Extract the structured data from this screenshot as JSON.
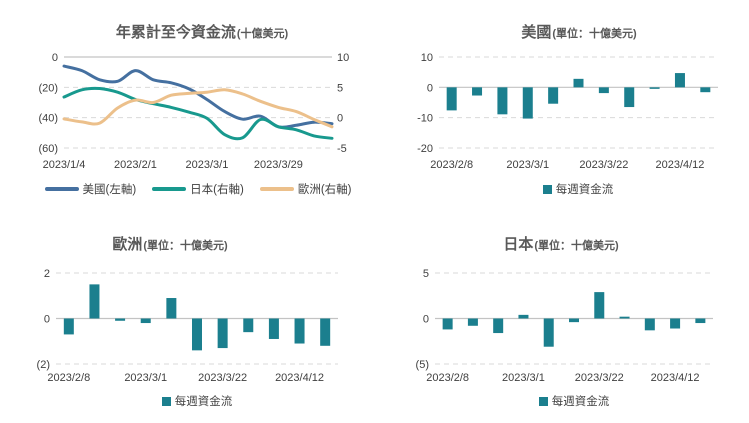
{
  "colors": {
    "us_line": "#4570a0",
    "japan_line": "#18998e",
    "europe_line": "#ecc08b",
    "bar_fill": "#1b7f8e",
    "negative_tick": "#ff0000",
    "tick_text": "#404040",
    "title_text": "#595959",
    "gridline": "#d9d9d9",
    "zero_line": "#c3c3c3",
    "background": "#ffffff"
  },
  "chart_data": [
    {
      "type": "line",
      "title": "年累計至今資金流",
      "title_suffix": "(十億美元)",
      "n_points": 16,
      "x_tick_labels": [
        "2023/1/4",
        "2023/2/1",
        "2023/3/1",
        "2023/3/29"
      ],
      "x_tick_indices": [
        0,
        4,
        8,
        12
      ],
      "left_axis": {
        "tick_labels": [
          "0",
          "(20)",
          "(40)",
          "(60)"
        ],
        "tick_values": [
          0,
          -20,
          -40,
          -60
        ],
        "range": [
          0,
          -60
        ]
      },
      "right_axis": {
        "tick_labels": [
          "10",
          "5",
          "0",
          "-5"
        ],
        "tick_values": [
          10,
          5,
          0,
          -5
        ],
        "range": [
          10,
          -5
        ]
      },
      "series": [
        {
          "id": "us",
          "name": "美國(左軸)",
          "axis": "left",
          "color_key": "us_line",
          "values": [
            -6,
            -9,
            -15,
            -16,
            -9,
            -15,
            -17,
            -21,
            -28,
            -36,
            -41,
            -39,
            -46,
            -45,
            -43,
            -44
          ]
        },
        {
          "id": "japan",
          "name": "日本(右軸)",
          "axis": "right",
          "color_key": "japan_line",
          "values": [
            3.4,
            4.6,
            4.8,
            4.2,
            3.0,
            2.3,
            1.7,
            0.9,
            -0.1,
            -2.8,
            -3.3,
            -0.3,
            -1.5,
            -2.0,
            -3.0,
            -3.4
          ]
        },
        {
          "id": "europe",
          "name": "歐洲(右軸)",
          "axis": "right",
          "color_key": "europe_line",
          "values": [
            -0.2,
            -0.7,
            -0.9,
            1.6,
            2.9,
            2.5,
            3.7,
            4.0,
            4.2,
            4.6,
            3.9,
            2.7,
            1.7,
            1.0,
            -0.3,
            -1.5
          ]
        }
      ]
    },
    {
      "type": "bar",
      "title": "美國",
      "title_suffix": "(單位：十億美元)",
      "legend": "每週資金流",
      "x_tick_labels": [
        "2023/2/8",
        "2023/3/1",
        "2023/3/22",
        "2023/4/12"
      ],
      "x_tick_indices": [
        0,
        3,
        6,
        9
      ],
      "y_axis": {
        "tick_labels": [
          "10",
          "0",
          "-10",
          "-20"
        ],
        "tick_values": [
          10,
          0,
          -10,
          -20
        ],
        "range": [
          10,
          -20
        ]
      },
      "values": [
        -7.6,
        -2.7,
        -8.9,
        -10.3,
        -5.4,
        2.8,
        -1.9,
        -6.5,
        -0.5,
        4.7,
        -1.6
      ]
    },
    {
      "type": "bar",
      "title": "歐洲",
      "title_suffix": "(單位：十億美元)",
      "legend": "每週資金流",
      "x_tick_labels": [
        "2023/2/8",
        "2023/3/1",
        "2023/3/22",
        "2023/4/12"
      ],
      "x_tick_indices": [
        0,
        3,
        6,
        9
      ],
      "y_axis": {
        "tick_labels": [
          "2",
          "0",
          "(2)"
        ],
        "tick_values": [
          2,
          0,
          -2
        ],
        "range": [
          2,
          -2
        ]
      },
      "values": [
        -0.7,
        1.5,
        -0.1,
        -0.2,
        0.9,
        -1.4,
        -1.3,
        -0.6,
        -0.9,
        -1.1,
        -1.2
      ]
    },
    {
      "type": "bar",
      "title": "日本",
      "title_suffix": "(單位：十億美元)",
      "legend": "每週資金流",
      "x_tick_labels": [
        "2023/2/8",
        "2023/3/1",
        "2023/3/22",
        "2023/4/12"
      ],
      "x_tick_indices": [
        0,
        3,
        6,
        9
      ],
      "y_axis": {
        "tick_labels": [
          "5",
          "0",
          "(5)"
        ],
        "tick_values": [
          5,
          0,
          -5
        ],
        "range": [
          5,
          -5
        ]
      },
      "values": [
        -1.2,
        -0.8,
        -1.6,
        0.4,
        -3.1,
        -0.4,
        2.9,
        0.2,
        -1.3,
        -1.1,
        -0.5
      ]
    }
  ]
}
